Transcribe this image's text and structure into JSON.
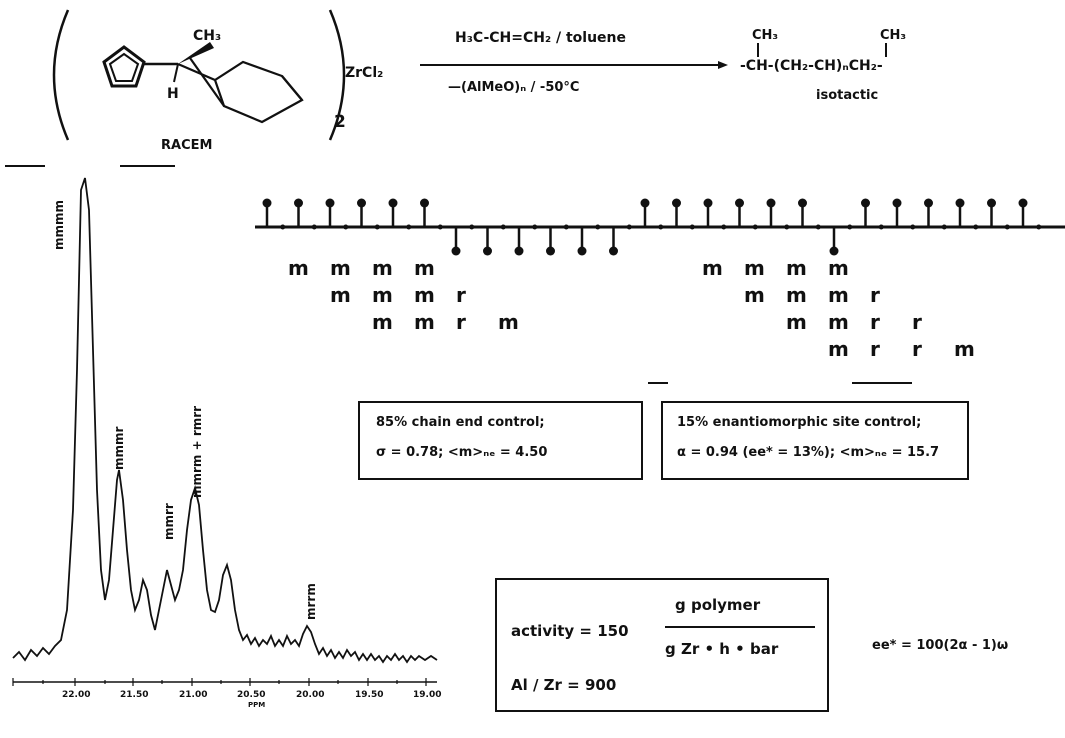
{
  "reaction": {
    "catalyst": {
      "ligand_label": "CH₃",
      "h_label": "H",
      "subscript": "2",
      "metal": "ZrCl₂",
      "caption": "RACEM"
    },
    "above_arrow": "H₃C-CH=CH₂ / toluene",
    "below_arrow": "—(AlMeO)ₙ  /  -50°C",
    "product_ch3_left": "CH₃",
    "product_ch3_right": "CH₃",
    "product_chain": "-CH-(CH₂-CH)ₙCH₂-",
    "product_caption": "isotactic"
  },
  "spectrum": {
    "axis_label": "PPM",
    "ticks": [
      "22.00",
      "21.50",
      "21.00",
      "20.50",
      "20.00",
      "19.50",
      "19.00"
    ],
    "peak_labels": [
      "mmmm",
      "mmmr",
      "mmrr",
      "mmrm + rmrr",
      "mrrm"
    ]
  },
  "chain": {
    "left_rows": [
      [
        "m",
        "m",
        "m",
        "m"
      ],
      [
        "m",
        "m",
        "m",
        "r"
      ],
      [
        "m",
        "m",
        "r",
        "m"
      ]
    ],
    "right_rows": [
      [
        "m",
        "m",
        "m",
        "m"
      ],
      [
        "m",
        "m",
        "m",
        "r"
      ],
      [
        "m",
        "m",
        "r",
        "r"
      ],
      [
        "m",
        "r",
        "r",
        "m"
      ]
    ]
  },
  "boxes": {
    "chain_end": {
      "line1": "85% chain end control;",
      "line2": "σ = 0.78; <m>ₙₑ = 4.50"
    },
    "site": {
      "line1": "15% enantiomorphic site control;",
      "line2": "α = 0.94 (ee* = 13%); <m>ₙₑ = 15.7"
    },
    "activity": {
      "label": "activity = 150",
      "numerator": "g polymer",
      "denominator": "g Zr • h • bar",
      "ratio": "Al / Zr = 900"
    }
  },
  "ee_formula": "ee* = 100(2α - 1)ω"
}
